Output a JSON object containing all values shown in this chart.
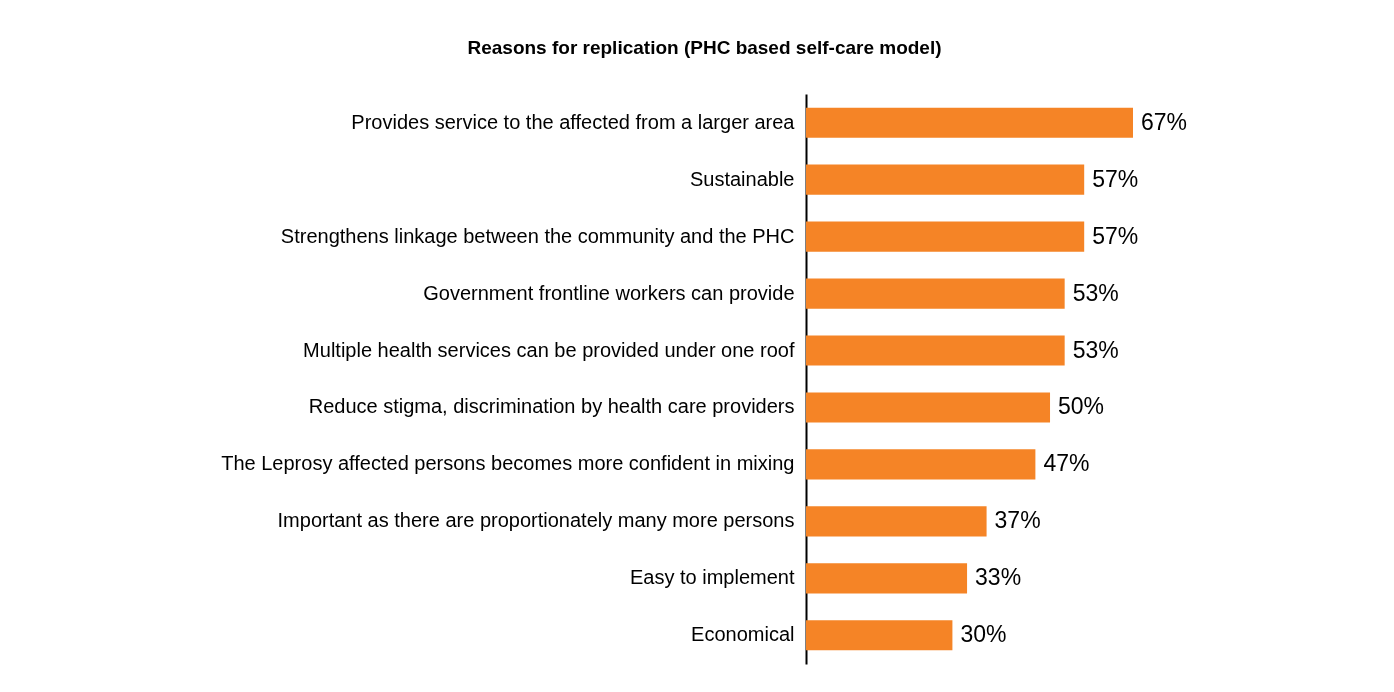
{
  "chart_data": {
    "type": "bar",
    "orientation": "horizontal",
    "title": "Reasons for replication (PHC based self-care model)",
    "categories": [
      "Provides service to the affected from a larger area",
      "Sustainable",
      "Strengthens linkage between the community and the PHC",
      "Government frontline workers can provide",
      "Multiple health services can be provided under one roof",
      "Reduce stigma, discrimination by health care providers",
      "The Leprosy affected persons becomes more confident in mixing",
      "Important as there are proportionately many more persons",
      "Easy to implement",
      "Economical"
    ],
    "values": [
      67,
      57,
      57,
      53,
      53,
      50,
      47,
      37,
      33,
      30
    ],
    "value_labels": [
      "67%",
      "57%",
      "57%",
      "53%",
      "53%",
      "50%",
      "47%",
      "37%",
      "33%",
      "30%"
    ],
    "color": "#f58426"
  }
}
